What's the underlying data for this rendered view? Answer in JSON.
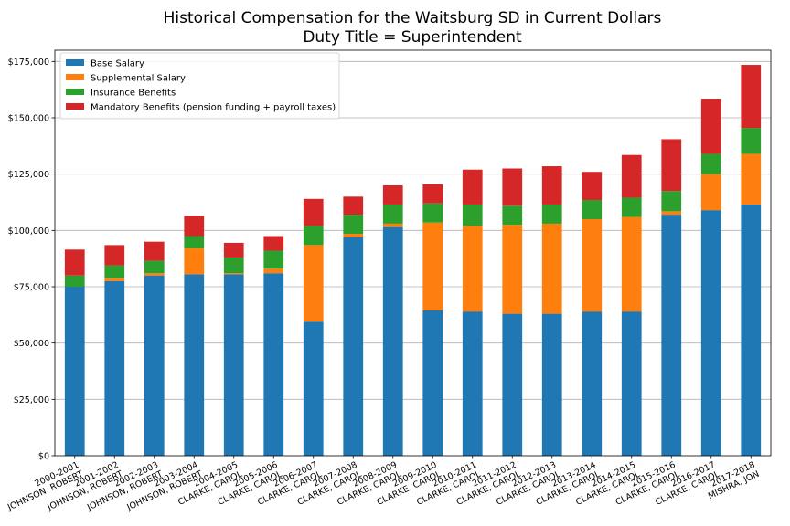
{
  "chart_data": {
    "type": "bar",
    "stacked": true,
    "title": [
      "Historical Compensation for the Waitsburg SD in Current Dollars",
      "Duty Title = Superintendent"
    ],
    "xlabel": "",
    "ylabel": "",
    "ylim": [
      0,
      180000
    ],
    "yticks": [
      0,
      25000,
      50000,
      75000,
      100000,
      125000,
      150000,
      175000
    ],
    "ytick_labels": [
      "$0",
      "$25,000",
      "$50,000",
      "$75,000",
      "$100,000",
      "$125,000",
      "$150,000",
      "$175,000"
    ],
    "grid": "horizontal",
    "legend_position": "top-left",
    "categories": [
      [
        "2000-2001",
        "JOHNSON, ROBERT"
      ],
      [
        "2001-2002",
        "JOHNSON, ROBERT"
      ],
      [
        "2002-2003",
        "JOHNSON, ROBERT"
      ],
      [
        "2003-2004",
        "JOHNSON, ROBERT"
      ],
      [
        "2004-2005",
        "CLARKE, CAROL"
      ],
      [
        "2005-2006",
        "CLARKE, CAROL"
      ],
      [
        "2006-2007",
        "CLARKE, CAROL"
      ],
      [
        "2007-2008",
        "CLARKE, CAROL"
      ],
      [
        "2008-2009",
        "CLARKE, CAROL"
      ],
      [
        "2009-2010",
        "CLARKE, CAROL"
      ],
      [
        "2010-2011",
        "CLARKE, CAROL"
      ],
      [
        "2011-2012",
        "CLARKE, CAROL"
      ],
      [
        "2012-2013",
        "CLARKE, CAROL"
      ],
      [
        "2013-2014",
        "CLARKE, CAROL"
      ],
      [
        "2014-2015",
        "CLARKE, CAROL"
      ],
      [
        "2015-2016",
        "CLARKE, CAROL"
      ],
      [
        "2016-2017",
        "CLARKE, CAROL"
      ],
      [
        "2017-2018",
        "MISHRA, JON"
      ]
    ],
    "series": [
      {
        "name": "Base Salary",
        "color": "#1f77b4",
        "values": [
          75000,
          77500,
          80000,
          80500,
          80500,
          81000,
          59500,
          97000,
          101500,
          64500,
          64000,
          63000,
          63000,
          64000,
          64000,
          107000,
          109000,
          111500
        ]
      },
      {
        "name": "Supplemental Salary",
        "color": "#ff7f0e",
        "values": [
          0,
          1500,
          1000,
          11500,
          500,
          2000,
          34000,
          1500,
          1500,
          39000,
          38000,
          39500,
          40000,
          41000,
          42000,
          1500,
          16000,
          22500
        ]
      },
      {
        "name": "Insurance Benefits",
        "color": "#2ca02c",
        "values": [
          5000,
          5500,
          5500,
          5500,
          7000,
          8000,
          8500,
          8500,
          8500,
          8500,
          9500,
          8500,
          8500,
          8500,
          8500,
          9000,
          9000,
          11500
        ]
      },
      {
        "name": "Mandatory Benefits (pension funding + payroll taxes)",
        "color": "#d62728",
        "values": [
          11500,
          9000,
          8500,
          9000,
          6500,
          6500,
          12000,
          8000,
          8500,
          8500,
          15500,
          16500,
          17000,
          12500,
          19000,
          23000,
          24500,
          28000
        ]
      }
    ]
  }
}
